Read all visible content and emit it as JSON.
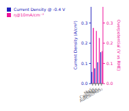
{
  "chart_data": {
    "type": "bar",
    "categories": [
      "MoS₂",
      "Cu₄/MoS₂",
      "Au₄/MoS₂",
      "Au₄Cu₂/MoS₂"
    ],
    "series": [
      {
        "name": "Current Density @ -0.4 V",
        "color": "#2222bb",
        "values": [
          0.057,
          0.075,
          0.105,
          0.155
        ],
        "axis": "y"
      },
      {
        "name": "η@10mA/cm⁻²",
        "color": "#ee1199",
        "values": [
          0.275,
          0.26,
          0.225,
          0.16
        ],
        "axis": "y2"
      }
    ],
    "ylabel": "Current Density (A/cm²)",
    "y2label": "Overpotential (V vs RHE)",
    "ylim": [
      0,
      0.38
    ],
    "yticks": [
      {
        "value": 0,
        "label": "0.0"
      },
      0.1,
      0.2,
      0.3
    ],
    "y2lim": [
      0.0,
      0.38
    ],
    "y2ticks": [
      {
        "value": 0,
        "label": "0.0"
      },
      0.1,
      0.2,
      0.3
    ],
    "legend": "upper left"
  }
}
